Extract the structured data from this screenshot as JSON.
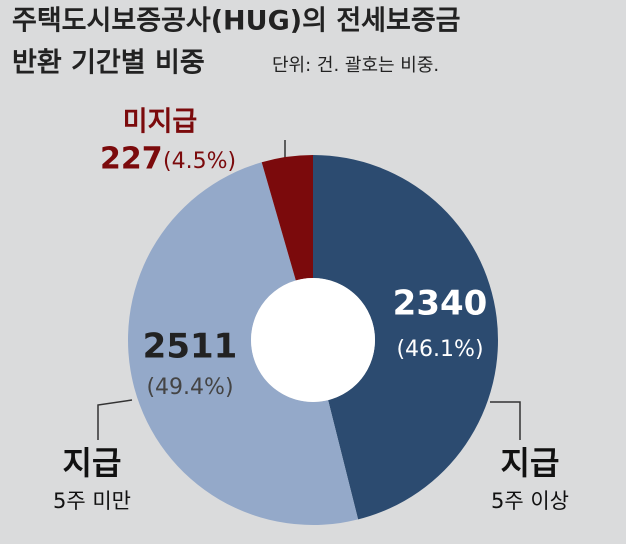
{
  "chart_data": {
    "type": "donut",
    "title": [
      "주택도시보증공사(HUG)의 전세보증금",
      "반환 기간별 비중"
    ],
    "subtitle": "단위: 건. 괄호는 비중.",
    "categories": [
      "지급",
      "지급",
      "미지급"
    ],
    "periods": [
      "5주 이상",
      "5주 미만",
      null
    ],
    "values": [
      2340,
      2511,
      227
    ],
    "percents": [
      46.1,
      49.4,
      4.5
    ],
    "percent_labels": [
      "(46.1%)",
      "(49.4%)",
      "(4.5%)"
    ],
    "colors": [
      "#2c4b70",
      "#94a9c9",
      "#7b0a0c"
    ]
  }
}
